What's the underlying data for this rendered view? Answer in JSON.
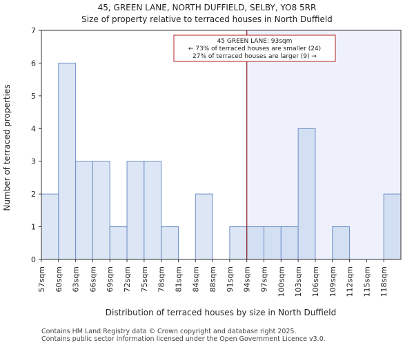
{
  "chart_data": {
    "type": "bar",
    "title": "45, GREEN LANE, NORTH DUFFIELD, SELBY, YO8 5RR",
    "subtitle": "Size of property relative to terraced houses in North Duffield",
    "xlabel": "Distribution of terraced houses by size in North Duffield",
    "ylabel": "Number of terraced properties",
    "ylim": [
      0,
      7
    ],
    "yticks": [
      "0",
      "1",
      "2",
      "3",
      "4",
      "5",
      "6",
      "7"
    ],
    "categories": [
      "57sqm",
      "60sqm",
      "63sqm",
      "66sqm",
      "69sqm",
      "72sqm",
      "75sqm",
      "78sqm",
      "81sqm",
      "84sqm",
      "88sqm",
      "91sqm",
      "94sqm",
      "97sqm",
      "100sqm",
      "103sqm",
      "106sqm",
      "109sqm",
      "112sqm",
      "115sqm",
      "118sqm"
    ],
    "values": [
      2,
      6,
      3,
      3,
      1,
      3,
      3,
      1,
      0,
      2,
      0,
      1,
      1,
      1,
      1,
      4,
      0,
      1,
      0,
      0,
      2
    ],
    "property_index": 12,
    "annotation": {
      "line1": "45 GREEN LANE: 93sqm",
      "line2": "← 73% of terraced houses are smaller (24)",
      "line3": "27% of terraced houses are larger (9) →"
    },
    "colors": {
      "bar_fill": "#dce6f4",
      "bar_fill_right": "#d3dff2",
      "bar_stroke": "#6e8fc8",
      "shade": "#eef1fb",
      "marker_line": "#8b1a1a",
      "annotation_border": "#b22222"
    }
  },
  "footer": {
    "line1": "Contains HM Land Registry data © Crown copyright and database right 2025.",
    "line2": "Contains public sector information licensed under the Open Government Licence v3.0."
  }
}
